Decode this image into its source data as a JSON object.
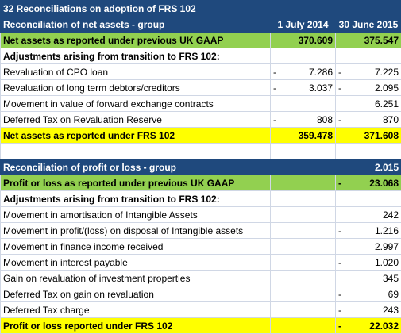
{
  "title": "32 Reconciliations on adoption of FRS 102",
  "net_assets": {
    "heading": "Reconciliation of net assets - group",
    "col_headers": [
      "1 July 2014",
      "30 June 2015"
    ],
    "rows": [
      {
        "kind": "green",
        "label": "Net assets as reported under previous UK GAAP",
        "cells": [
          {
            "value": "370.609"
          },
          {
            "value": "375.547"
          }
        ]
      },
      {
        "kind": "sub",
        "label": "Adjustments arising from transition to FRS 102:",
        "cells": [
          null,
          null
        ]
      },
      {
        "kind": "plain",
        "label": "Revaluation of CPO loan",
        "cells": [
          {
            "sign": "-",
            "value": "7.286"
          },
          {
            "sign": "-",
            "value": "7.225"
          }
        ]
      },
      {
        "kind": "plain",
        "label": "Revaluation of long term debtors/creditors",
        "cells": [
          {
            "sign": "-",
            "value": "3.037"
          },
          {
            "sign": "-",
            "value": "2.095"
          }
        ]
      },
      {
        "kind": "plain",
        "label": "Movement in value of forward exchange contracts",
        "cells": [
          null,
          {
            "value": "6.251"
          }
        ]
      },
      {
        "kind": "plain",
        "label": "Deferred Tax on Revaluation Reserve",
        "cells": [
          {
            "sign": "-",
            "value": "808"
          },
          {
            "sign": "-",
            "value": "870"
          }
        ]
      },
      {
        "kind": "yellow",
        "label": "Net assets as reported under FRS 102",
        "cells": [
          {
            "value": "359.478"
          },
          {
            "value": "371.608"
          }
        ]
      }
    ]
  },
  "profit_loss": {
    "heading": "Reconciliation of profit or loss - group",
    "col_header": "2.015",
    "rows": [
      {
        "kind": "green",
        "label": "Profit or loss as reported under previous UK GAAP",
        "cells": [
          null,
          {
            "sign": "-",
            "value": "23.068"
          }
        ]
      },
      {
        "kind": "sub",
        "label": "Adjustments arising from transition to FRS 102:",
        "cells": [
          null,
          null
        ]
      },
      {
        "kind": "plain",
        "label": "Movement in amortisation of Intangible Assets",
        "cells": [
          null,
          {
            "value": "242"
          }
        ]
      },
      {
        "kind": "plain",
        "label": "Movement in profit/(loss) on disposal of Intangible assets",
        "cells": [
          null,
          {
            "sign": "-",
            "value": "1.216"
          }
        ]
      },
      {
        "kind": "plain",
        "label": "Movement in finance income received",
        "cells": [
          null,
          {
            "value": "2.997"
          }
        ]
      },
      {
        "kind": "plain",
        "label": "Movement in interest payable",
        "cells": [
          null,
          {
            "sign": "-",
            "value": "1.020"
          }
        ]
      },
      {
        "kind": "plain",
        "label": "Gain on revaluation of investment properties",
        "cells": [
          null,
          {
            "value": "345"
          }
        ]
      },
      {
        "kind": "plain",
        "label": "Deferred Tax on gain on revaluation",
        "cells": [
          null,
          {
            "sign": "-",
            "value": "69"
          }
        ]
      },
      {
        "kind": "plain",
        "label": "Deferred Tax charge",
        "cells": [
          null,
          {
            "sign": "-",
            "value": "243"
          }
        ]
      },
      {
        "kind": "yellow",
        "label": "Profit or loss reported under FRS 102",
        "cells": [
          null,
          {
            "sign": "-",
            "value": "22.032"
          }
        ]
      }
    ]
  }
}
